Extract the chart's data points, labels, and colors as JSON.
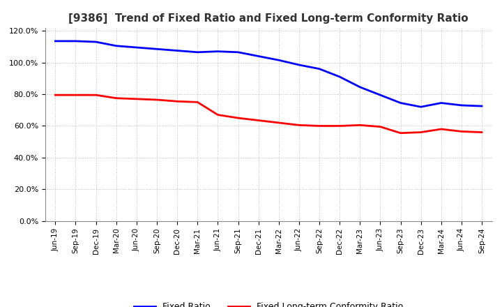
{
  "title": "[9386]  Trend of Fixed Ratio and Fixed Long-term Conformity Ratio",
  "title_fontsize": 11,
  "fixed_ratio": {
    "label": "Fixed Ratio",
    "color": "#0000FF",
    "values": [
      113.5,
      113.5,
      113.0,
      110.5,
      109.5,
      108.5,
      107.5,
      106.5,
      107.0,
      106.5,
      104.0,
      101.5,
      98.5,
      96.0,
      91.0,
      84.5,
      79.5,
      74.5,
      72.0,
      74.5,
      73.0,
      72.5
    ]
  },
  "fixed_lt_ratio": {
    "label": "Fixed Long-term Conformity Ratio",
    "color": "#FF0000",
    "values": [
      79.5,
      79.5,
      79.5,
      77.5,
      77.0,
      76.5,
      75.5,
      75.0,
      67.0,
      65.0,
      63.5,
      62.0,
      60.5,
      60.0,
      60.0,
      60.5,
      59.5,
      55.5,
      56.0,
      58.0,
      56.5,
      56.0
    ]
  },
  "x_labels": [
    "Jun-19",
    "Sep-19",
    "Dec-19",
    "Mar-20",
    "Jun-20",
    "Sep-20",
    "Dec-20",
    "Mar-21",
    "Jun-21",
    "Sep-21",
    "Dec-21",
    "Mar-22",
    "Jun-22",
    "Sep-22",
    "Dec-22",
    "Mar-23",
    "Jun-23",
    "Sep-23",
    "Dec-23",
    "Mar-24",
    "Jun-24",
    "Sep-24"
  ],
  "ylim": [
    0,
    122
  ],
  "yticks": [
    0,
    20,
    40,
    60,
    80,
    100,
    120
  ],
  "ytick_labels": [
    "0.0%",
    "20.0%",
    "40.0%",
    "60.0%",
    "80.0%",
    "100.0%",
    "120.0%"
  ],
  "background_color": "#FFFFFF",
  "grid_color": "#BBBBBB",
  "line_width": 2.0,
  "legend_ncol": 2
}
